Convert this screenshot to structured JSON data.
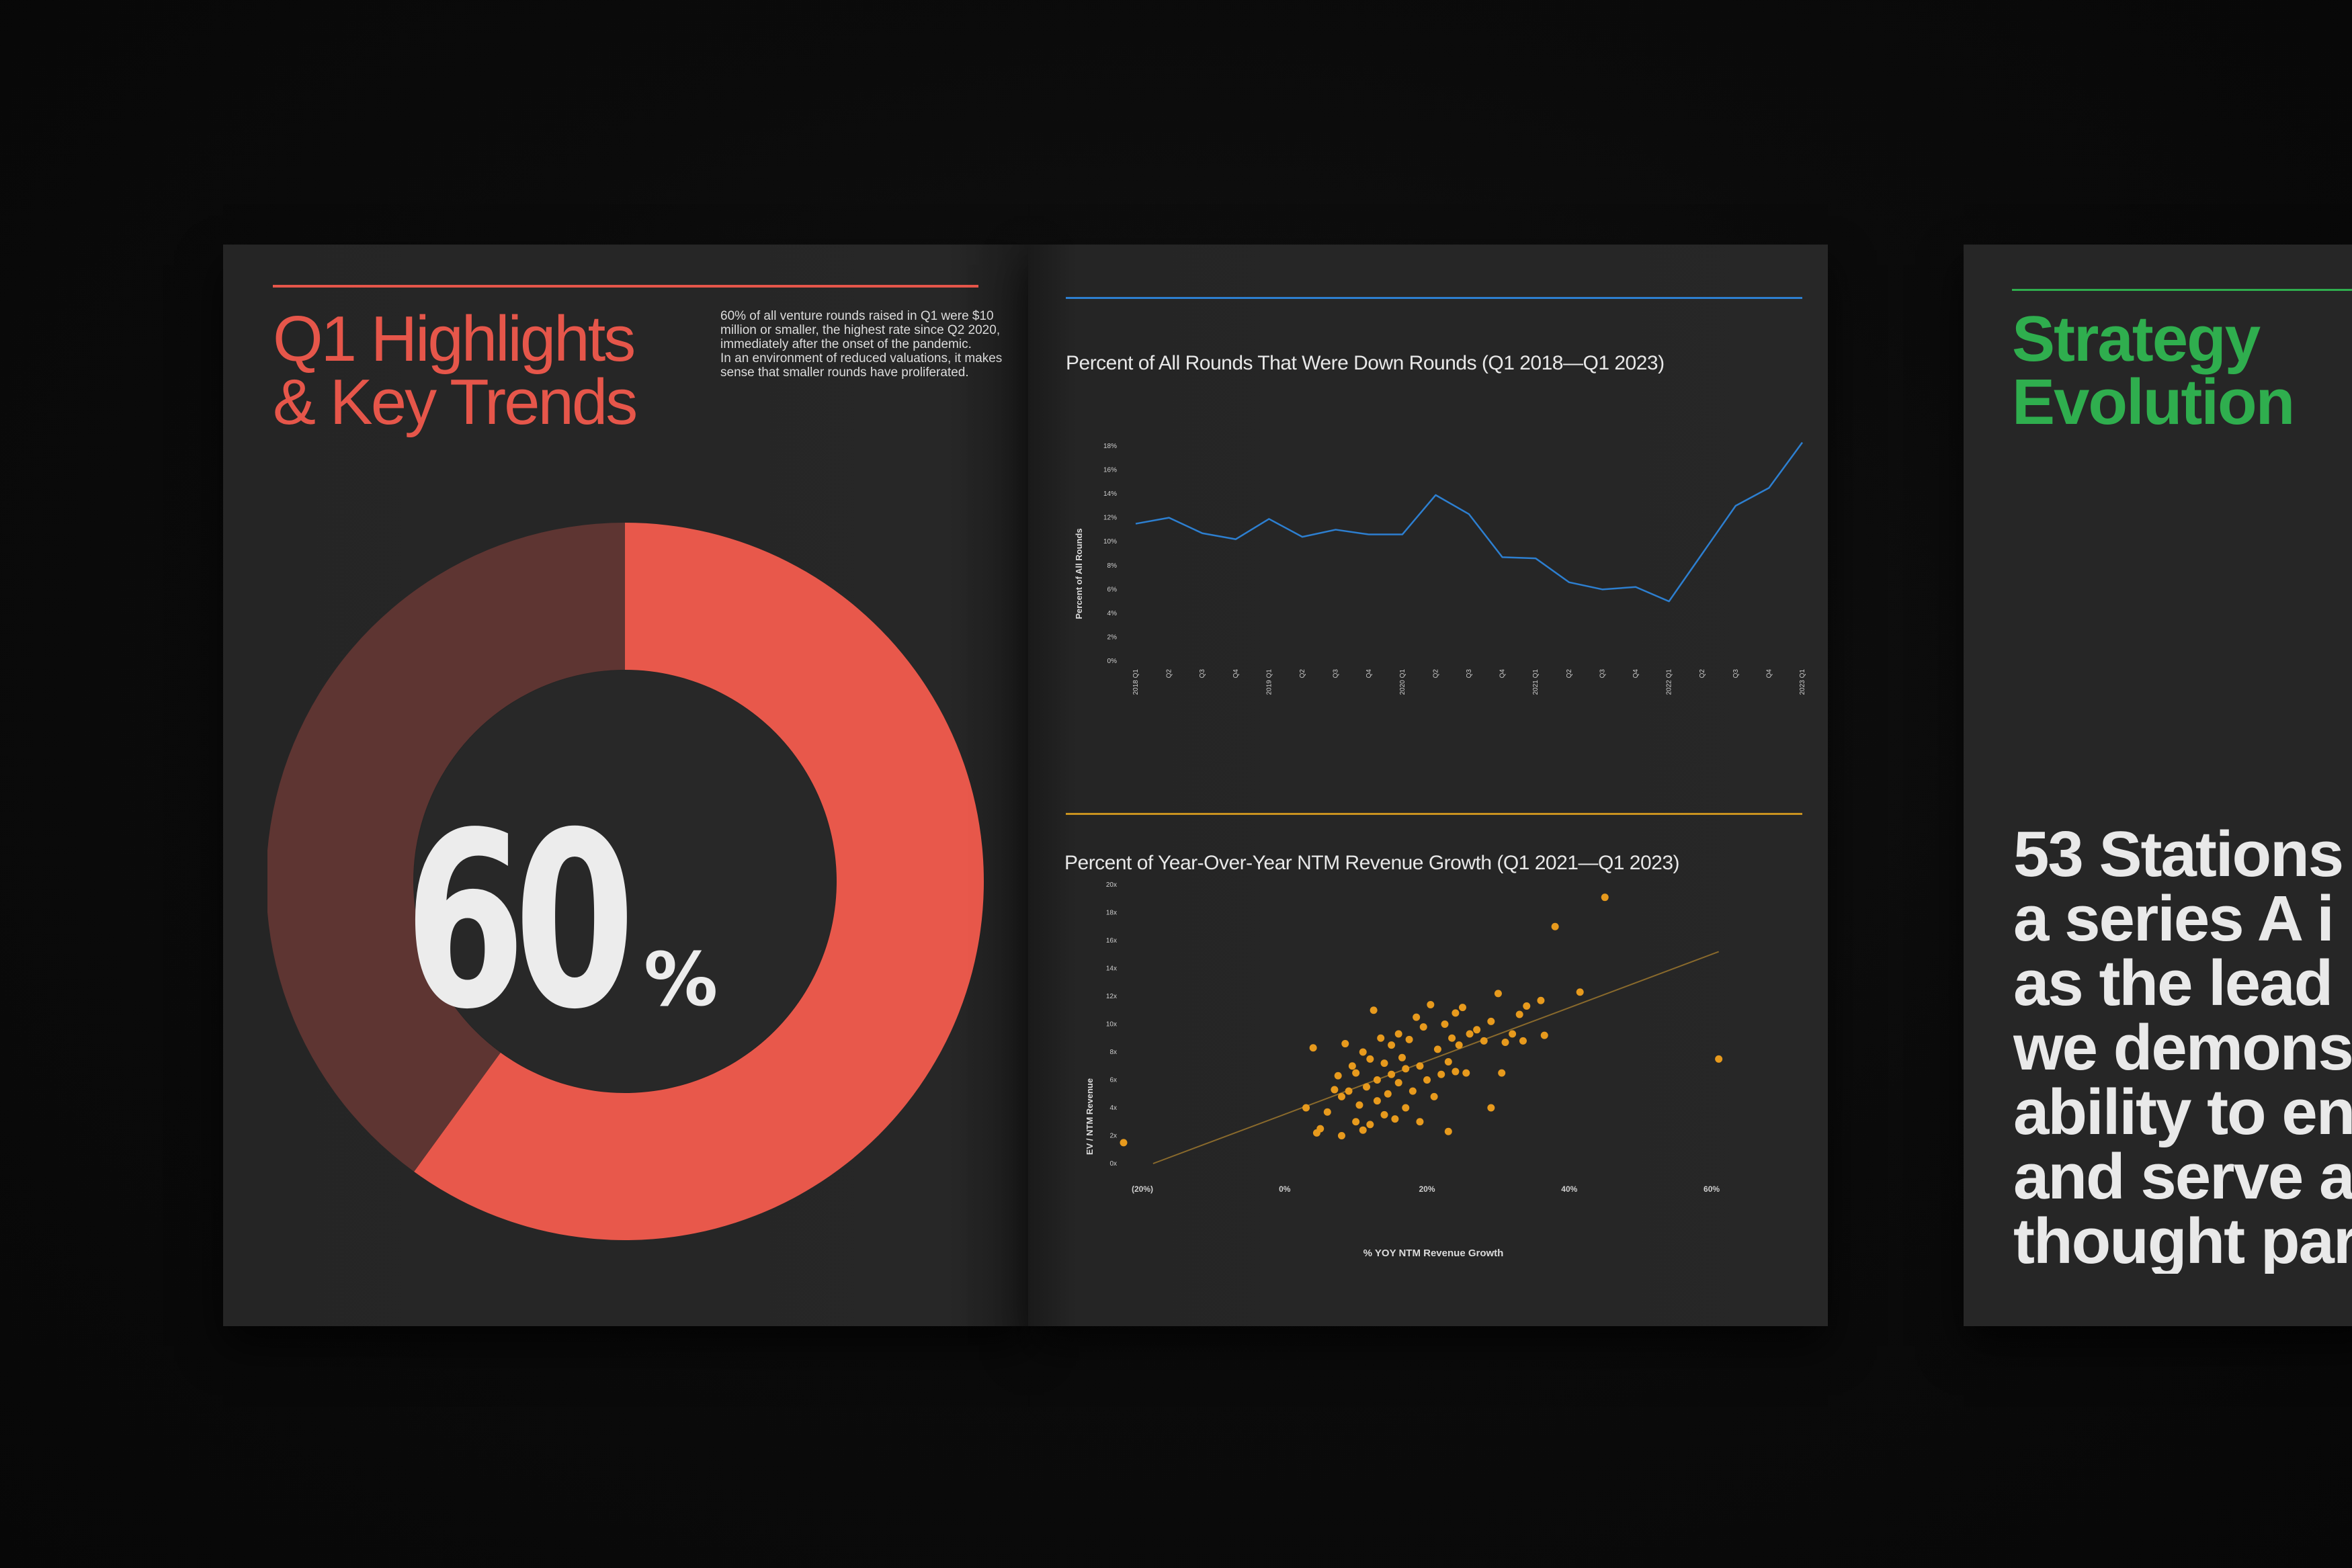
{
  "left_page": {
    "title_line1": "Q1 Highlights",
    "title_line2": "& Key Trends",
    "intro_lines": [
      "60% of all venture rounds raised in Q1 were $10",
      "million or smaller, the highest rate since Q2 2020,",
      "immediately after the onset of the pandemic.",
      "In an environment of reduced valuations, it makes",
      "sense that smaller rounds have proliferated."
    ],
    "accent_color": "#e6564a"
  },
  "right_page": {
    "title_line1": "Strategy",
    "title_line2": "Evolution",
    "body_lines": [
      "53 Stations",
      "a series A i",
      "as the lead",
      "we demons",
      "ability to en",
      "and serve a",
      "thought par"
    ],
    "accent_color": "#2fae4e"
  },
  "chart_data": [
    {
      "type": "pie",
      "variant": "donut",
      "center_value": "60",
      "center_unit": "%",
      "slices": [
        {
          "value": 60,
          "color": "#e8584b"
        },
        {
          "value": 40,
          "color": "#5e3532"
        }
      ]
    },
    {
      "type": "line",
      "title": "Percent of All Rounds That Were Down Rounds (Q1 2018—Q1 2023)",
      "ylabel": "Percent of All Rounds",
      "xlabel": "",
      "categories": [
        "2018 Q1",
        "Q2",
        "Q3",
        "Q4",
        "2019 Q1",
        "Q2",
        "Q3",
        "Q4",
        "2020 Q1",
        "Q2",
        "Q3",
        "Q4",
        "2021 Q1",
        "Q2",
        "Q3",
        "Q4",
        "2022 Q1",
        "Q2",
        "Q3",
        "Q4",
        "2023 Q1"
      ],
      "values": [
        11.5,
        12.0,
        10.7,
        10.2,
        11.9,
        10.4,
        11.0,
        10.6,
        10.6,
        13.9,
        12.3,
        8.7,
        8.6,
        6.6,
        6.0,
        6.2,
        5.0,
        9.0,
        13.0,
        14.5,
        18.3
      ],
      "ylim": [
        0,
        18
      ],
      "yticks": [
        0,
        2,
        4,
        6,
        8,
        10,
        12,
        14,
        16,
        18
      ],
      "ytick_labels": [
        "0%",
        "2%",
        "4%",
        "6%",
        "8%",
        "10%",
        "12%",
        "14%",
        "16%",
        "18%"
      ],
      "color": "#2d7fd0",
      "grid": false
    },
    {
      "type": "scatter",
      "title": "Percent of Year-Over-Year NTM Revenue Growth  (Q1 2021—Q1 2023)",
      "xlabel": "% YOY NTM Revenue Growth",
      "ylabel": "EV / NTM Revenue",
      "xlim": [
        -20,
        65
      ],
      "ylim": [
        0,
        20
      ],
      "xticks": [
        -20,
        0,
        20,
        40,
        60
      ],
      "xtick_labels": [
        "(20%)",
        "0%",
        "20%",
        "40%",
        "60%"
      ],
      "yticks": [
        0,
        2,
        4,
        6,
        8,
        10,
        12,
        14,
        16,
        18,
        20
      ],
      "ytick_labels": [
        "0x",
        "2x",
        "4x",
        "6x",
        "8x",
        "10x",
        "12x",
        "14x",
        "16x",
        "18x",
        "20x"
      ],
      "trendline": {
        "x": [
          -18.5,
          61
        ],
        "y": [
          0.0,
          15.2
        ]
      },
      "color": "#e79a1d",
      "grid": false,
      "points": [
        [
          -25.5,
          1.5
        ],
        [
          3,
          4.0
        ],
        [
          4,
          8.3
        ],
        [
          4.5,
          2.2
        ],
        [
          5,
          2.5
        ],
        [
          6,
          3.7
        ],
        [
          7,
          5.3
        ],
        [
          7.5,
          6.3
        ],
        [
          8,
          2.0
        ],
        [
          8,
          4.8
        ],
        [
          8.5,
          8.6
        ],
        [
          9,
          5.2
        ],
        [
          9.5,
          7.0
        ],
        [
          10,
          3.0
        ],
        [
          10,
          6.5
        ],
        [
          10.5,
          4.2
        ],
        [
          11,
          8.0
        ],
        [
          11,
          2.4
        ],
        [
          11.5,
          5.5
        ],
        [
          12,
          2.8
        ],
        [
          12,
          7.5
        ],
        [
          12.5,
          11.0
        ],
        [
          13,
          4.5
        ],
        [
          13,
          6.0
        ],
        [
          13.5,
          9.0
        ],
        [
          14,
          3.5
        ],
        [
          14,
          7.2
        ],
        [
          14.5,
          5.0
        ],
        [
          15,
          8.5
        ],
        [
          15,
          6.4
        ],
        [
          15.5,
          3.2
        ],
        [
          16,
          9.3
        ],
        [
          16,
          5.8
        ],
        [
          16.5,
          7.6
        ],
        [
          17,
          4.0
        ],
        [
          17,
          6.8
        ],
        [
          17.5,
          8.9
        ],
        [
          18,
          5.2
        ],
        [
          18.5,
          10.5
        ],
        [
          19,
          7.0
        ],
        [
          19,
          3.0
        ],
        [
          19.5,
          9.8
        ],
        [
          20,
          6.0
        ],
        [
          20.5,
          11.4
        ],
        [
          21,
          4.8
        ],
        [
          21.5,
          8.2
        ],
        [
          22,
          6.4
        ],
        [
          22.5,
          10.0
        ],
        [
          23,
          7.3
        ],
        [
          23,
          2.3
        ],
        [
          23.5,
          9.0
        ],
        [
          24,
          6.6
        ],
        [
          24,
          10.8
        ],
        [
          24.5,
          8.5
        ],
        [
          25,
          11.2
        ],
        [
          25.5,
          6.5
        ],
        [
          26,
          9.3
        ],
        [
          27,
          9.6
        ],
        [
          28,
          8.8
        ],
        [
          29,
          10.2
        ],
        [
          29,
          4.0
        ],
        [
          30,
          12.2
        ],
        [
          30.5,
          6.5
        ],
        [
          31,
          8.7
        ],
        [
          32,
          9.3
        ],
        [
          33,
          10.7
        ],
        [
          33.5,
          8.8
        ],
        [
          34,
          11.3
        ],
        [
          36,
          11.7
        ],
        [
          36.5,
          9.2
        ],
        [
          38,
          17.0
        ],
        [
          41.5,
          12.3
        ],
        [
          45,
          19.1
        ],
        [
          61,
          7.5
        ]
      ]
    }
  ]
}
